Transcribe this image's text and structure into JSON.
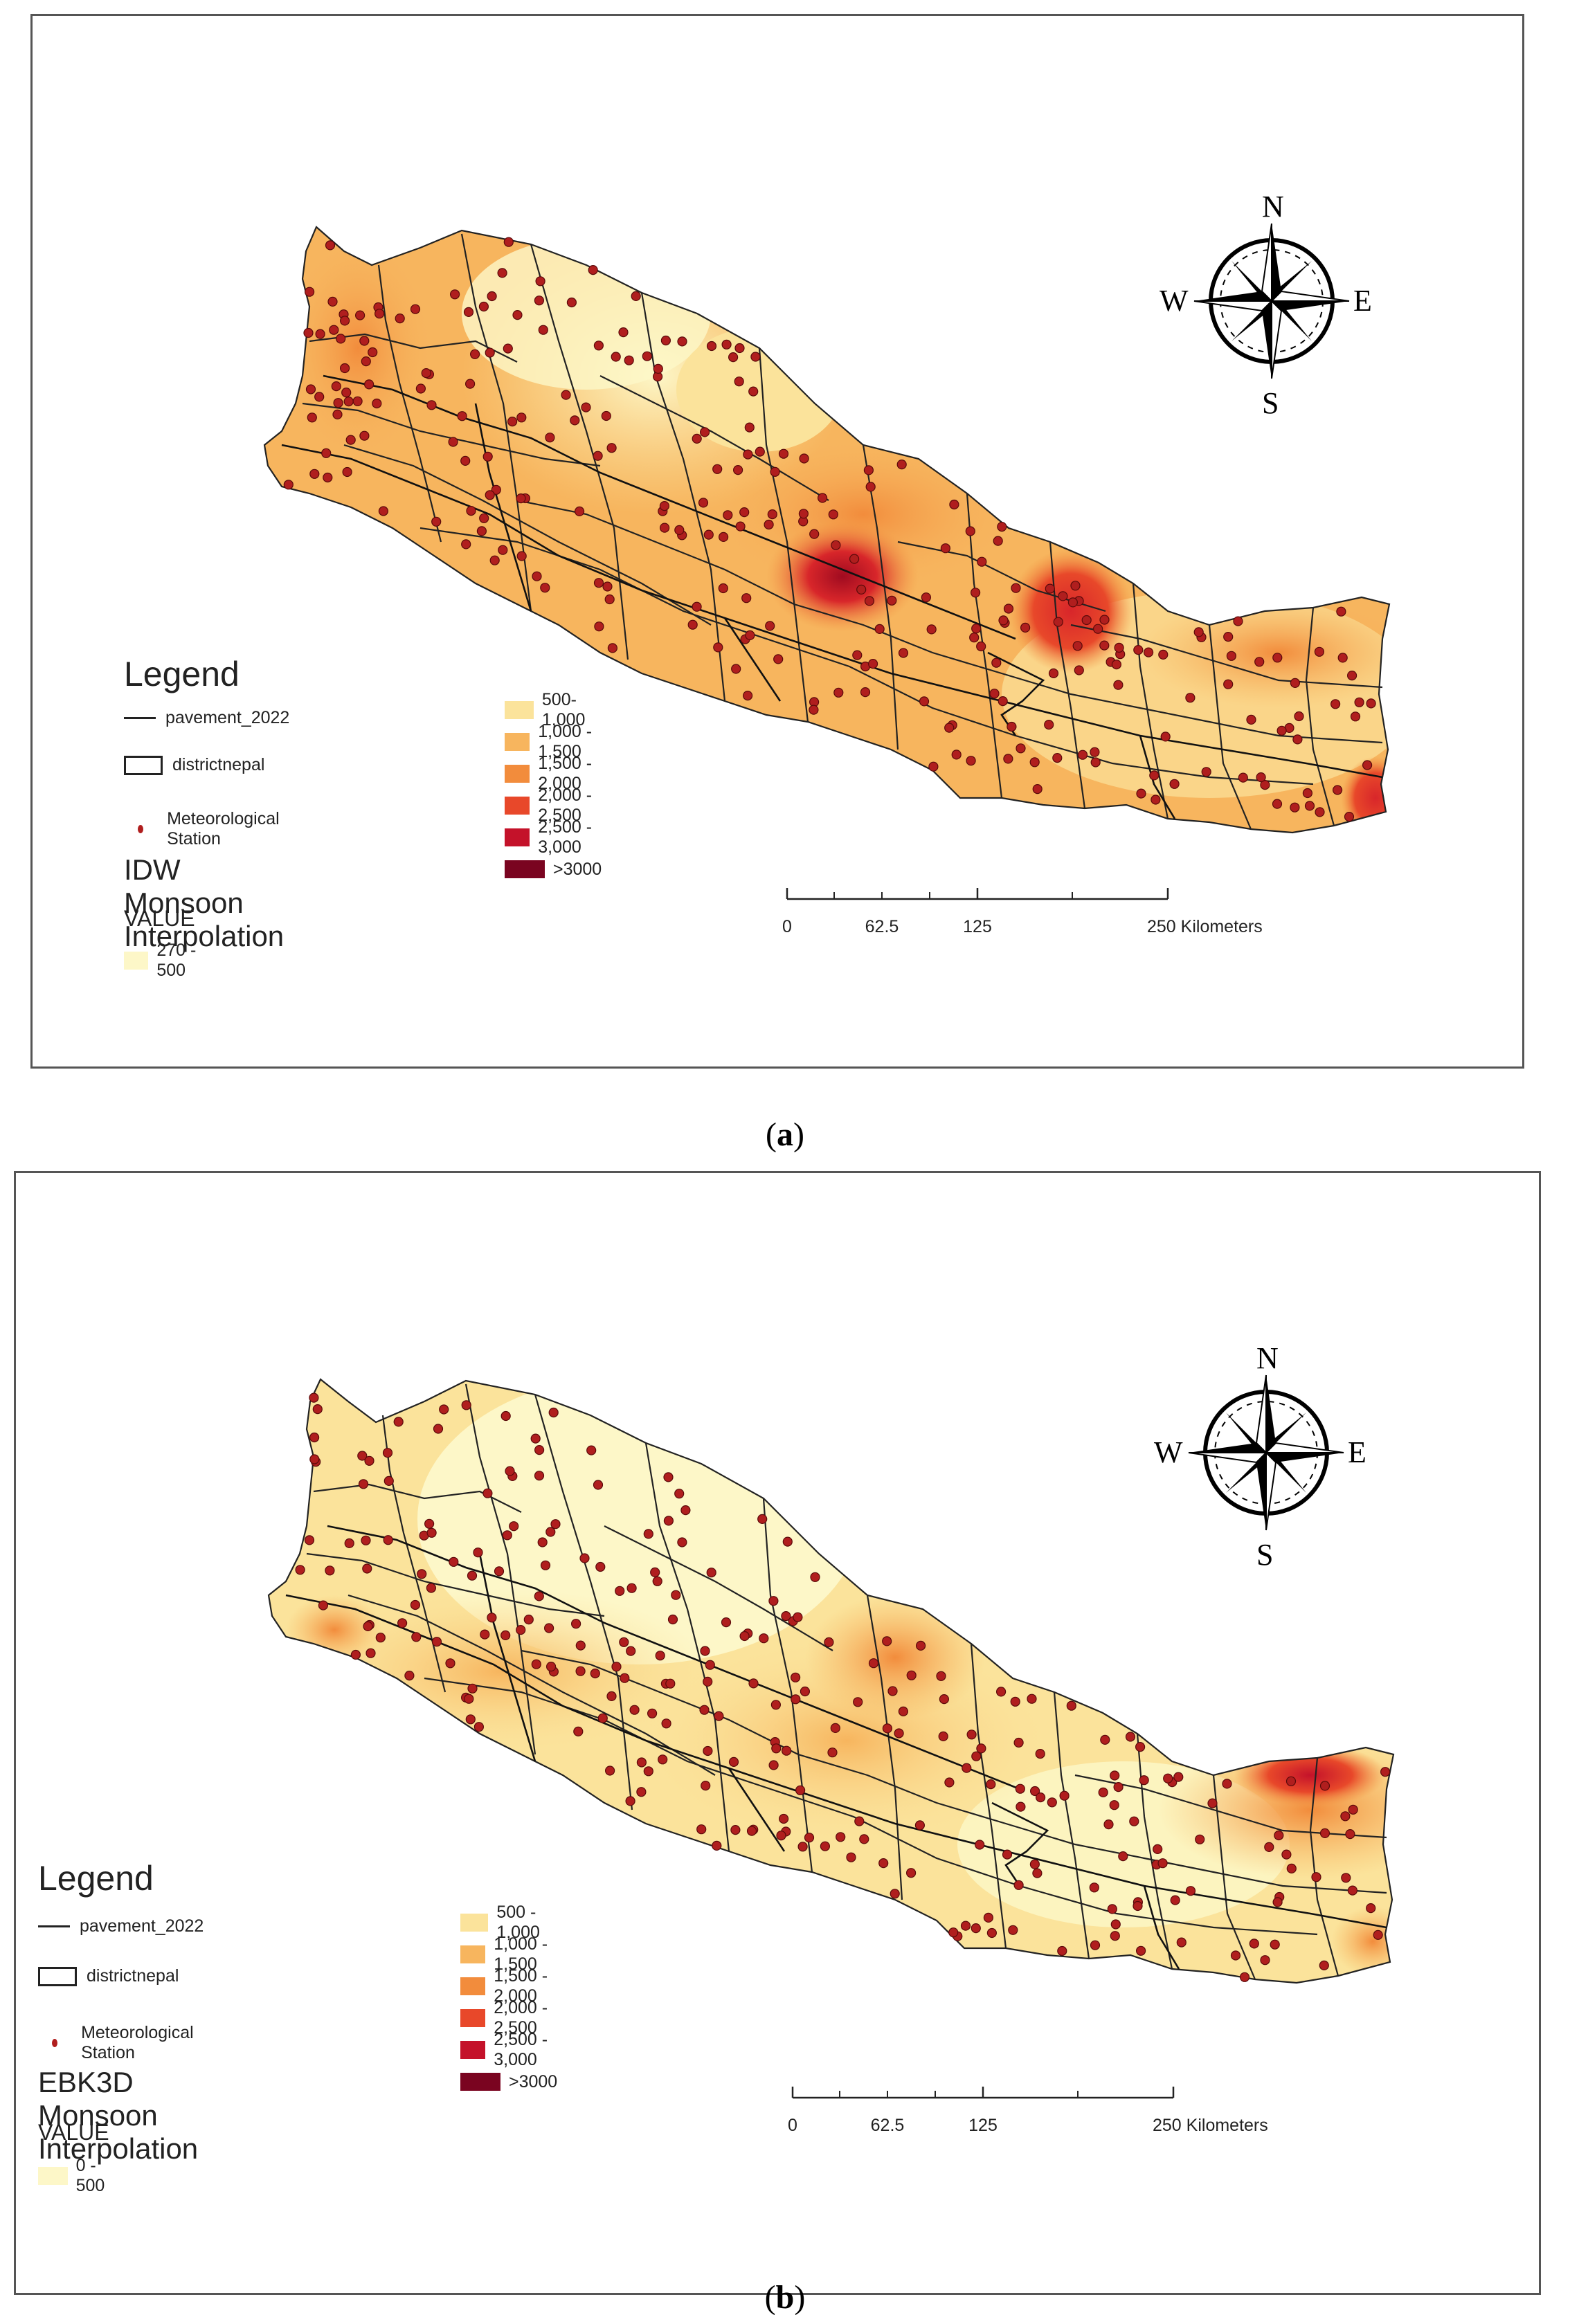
{
  "panels": [
    {
      "caption_letter": "a",
      "legend_title": "Legend",
      "road_label": "pavement_2022",
      "district_label": "districtnepal",
      "station_label": "Meteorological Station",
      "interp_title": "IDW Monsoon Interpolation",
      "value_label": "VALUE",
      "lowest_class": {
        "label": "270 - 500",
        "color": "#fdf7c8"
      },
      "classes": [
        {
          "label": "500- 1,000",
          "color": "#fbe39b"
        },
        {
          "label": "1,000 - 1,500",
          "color": "#f7b55e"
        },
        {
          "label": "1,500 - 2,000",
          "color": "#f28c3c"
        },
        {
          "label": "2,000 - 2,500",
          "color": "#e8482a"
        },
        {
          "label": "2,500 - 3,000",
          "color": "#c4122a"
        },
        {
          "label": ">3000",
          "color": "#7a0420"
        }
      ],
      "scale": {
        "ticks": [
          "0",
          "62.5",
          "125",
          "250 Kilometers"
        ]
      },
      "compass": {
        "n": "N",
        "s": "S",
        "e": "E",
        "w": "W"
      }
    },
    {
      "caption_letter": "b",
      "legend_title": "Legend",
      "road_label": "pavement_2022",
      "district_label": "districtnepal",
      "station_label": "Meteorological Station",
      "interp_title": "EBK3D Monsoon Interpolation",
      "value_label": "VALUE",
      "lowest_class": {
        "label": "0 - 500",
        "color": "#fdf7c8"
      },
      "classes": [
        {
          "label": "500 - 1,000",
          "color": "#fbe39b"
        },
        {
          "label": "1,000 - 1,500",
          "color": "#f7b55e"
        },
        {
          "label": "1,500 - 2,000",
          "color": "#f28c3c"
        },
        {
          "label": "2,000 - 2,500",
          "color": "#e8482a"
        },
        {
          "label": "2,500 - 3,000",
          "color": "#c4122a"
        },
        {
          "label": ">3000",
          "color": "#7a0420"
        }
      ],
      "scale": {
        "ticks": [
          "0",
          "62.5",
          "125",
          "250 Kilometers"
        ]
      },
      "compass": {
        "n": "N",
        "s": "S",
        "e": "E",
        "w": "W"
      }
    }
  ],
  "caption_parens": {
    "open": "(",
    "close": ")"
  },
  "colors": {
    "station": "#b01e1e",
    "boundary": "#222222",
    "frame": "#555555"
  }
}
